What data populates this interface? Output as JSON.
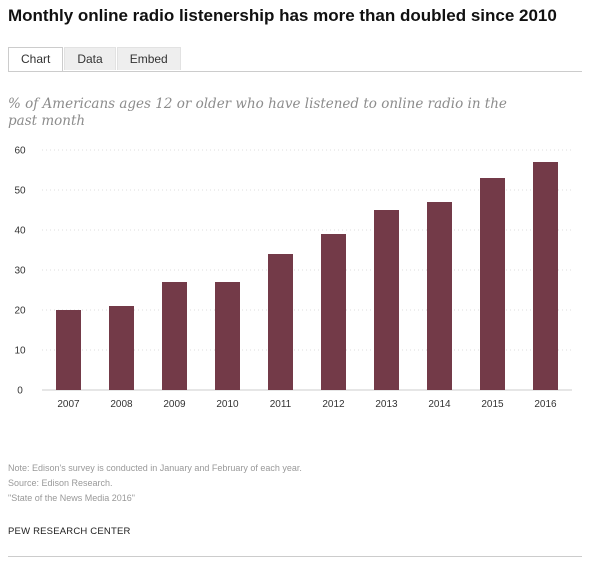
{
  "title": "Monthly online radio listenership has more than doubled since 2010",
  "tabs": [
    {
      "label": "Chart",
      "active": true
    },
    {
      "label": "Data",
      "active": false
    },
    {
      "label": "Embed",
      "active": false
    }
  ],
  "subtitle": "% of Americans ages 12 or older who have listened to online radio in the past month",
  "chart_data": {
    "type": "bar",
    "categories": [
      "2007",
      "2008",
      "2009",
      "2010",
      "2011",
      "2012",
      "2013",
      "2014",
      "2015",
      "2016"
    ],
    "values": [
      20,
      21,
      27,
      27,
      34,
      39,
      45,
      47,
      53,
      57
    ],
    "ylim": [
      0,
      60
    ],
    "yticks": [
      0,
      10,
      20,
      30,
      40,
      50,
      60
    ],
    "xlabel": "",
    "ylabel": "",
    "grid": true,
    "bar_color": "#733a48"
  },
  "notes": {
    "note": "Note: Edison's survey is conducted in January and February of each year.",
    "source": "Source: Edison Research.",
    "report": "\"State of the News Media 2016\""
  },
  "brand": "PEW RESEARCH CENTER"
}
